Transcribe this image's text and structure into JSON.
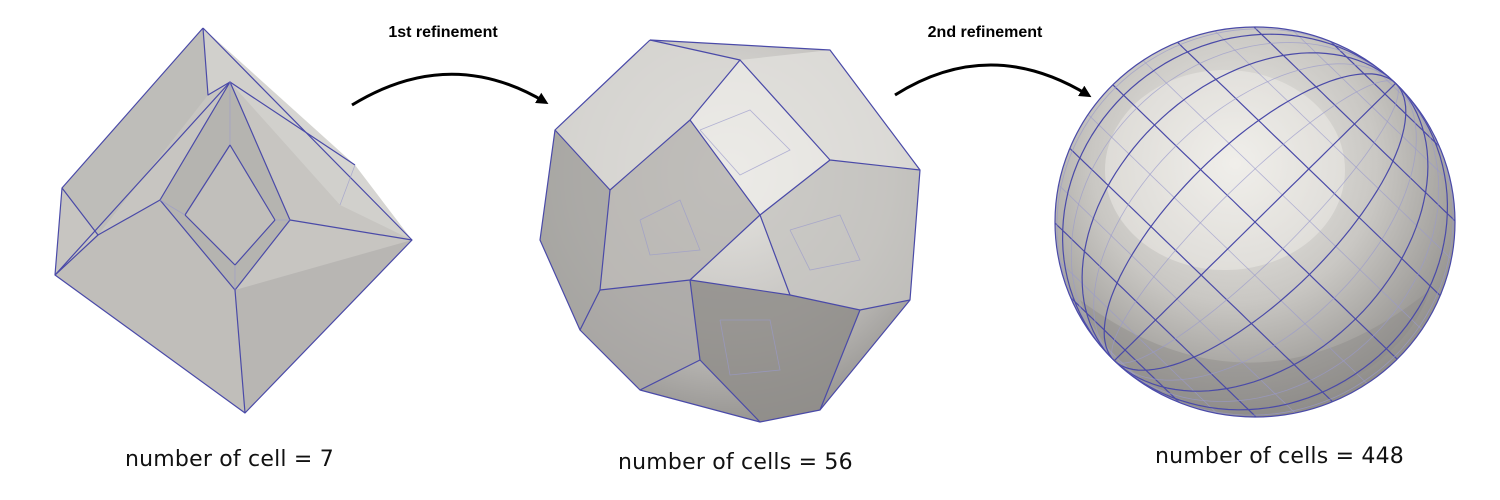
{
  "arrows": [
    {
      "label": "1st refinement"
    },
    {
      "label": "2nd refinement"
    }
  ],
  "meshes": [
    {
      "caption": "number of cell = 7",
      "cell_count": 7
    },
    {
      "caption": "number of cells = 56",
      "cell_count": 56
    },
    {
      "caption": "number of cells = 448",
      "cell_count": 448
    }
  ],
  "colors": {
    "surface": "#c8c6c3",
    "surface_dark": "#9d9b98",
    "surface_light": "#e6e5e1",
    "edge": "#4a4aa8"
  }
}
